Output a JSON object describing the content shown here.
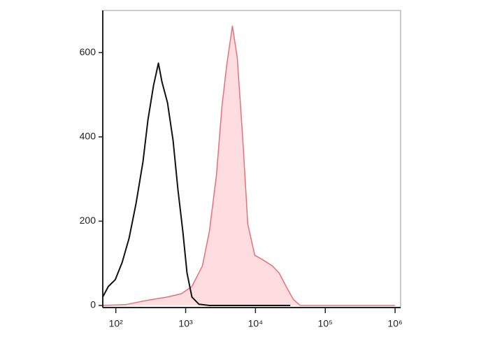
{
  "chart_data": {
    "type": "histogram-overlay",
    "xscale": "log",
    "xlim": [
      65,
      1200000
    ],
    "ylim": [
      -5,
      700
    ],
    "xticks": [
      {
        "value": 100,
        "label": "10²"
      },
      {
        "value": 1000,
        "label": "10³"
      },
      {
        "value": 10000,
        "label": "10⁴"
      },
      {
        "value": 100000,
        "label": "10⁵"
      },
      {
        "value": 1000000,
        "label": "10⁶"
      }
    ],
    "yticks": [
      0,
      200,
      400,
      600
    ],
    "series": [
      {
        "color": "#e8707a",
        "fill": "#fddde0",
        "x": [
          65,
          138,
          275,
          550,
          871,
          1230,
          1738,
          2188,
          2754,
          3311,
          3890,
          4677,
          5495,
          6607,
          7762,
          9772,
          12303,
          17378,
          21878,
          27542,
          34674,
          43652,
          69183,
          1000000
        ],
        "values": [
          0,
          2,
          12,
          20,
          28,
          45,
          94,
          176,
          308,
          473,
          572,
          663,
          588,
          391,
          193,
          119,
          110,
          94,
          77,
          45,
          15,
          0,
          0,
          0
        ]
      },
      {
        "color": "#111111",
        "x": [
          65,
          78,
          98,
          123,
          155,
          195,
          245,
          288,
          347,
          407,
          457,
          550,
          661,
          776,
          912,
          1047,
          1230,
          1549,
          2188,
          4365,
          10000,
          31623
        ],
        "values": [
          20,
          45,
          61,
          102,
          160,
          242,
          341,
          440,
          522,
          575,
          531,
          481,
          391,
          275,
          176,
          77,
          20,
          3,
          0,
          0,
          0,
          0
        ]
      }
    ]
  }
}
